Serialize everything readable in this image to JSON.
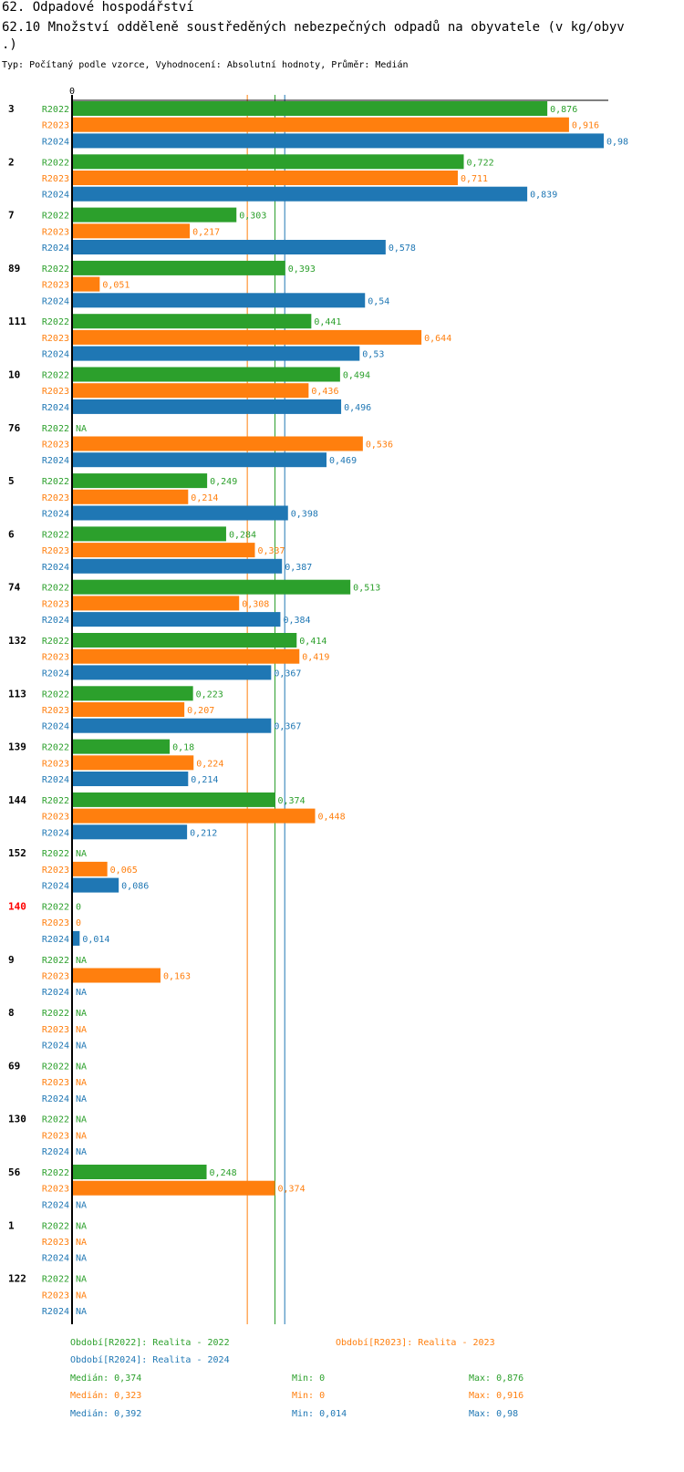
{
  "header": {
    "title": "62. Odpadové hospodářství",
    "subtitle_line1": "62.10 Množství odděleně soustředěných nebezpečných odpadů na obyvatele (v kg/obyv",
    "subtitle_line2": ".)",
    "info": "Typ: Počítaný podle vzorce, Vyhodnocení: Absolutní hodnoty, Průměr: Medián"
  },
  "colors": {
    "R2022": "#2ca02c",
    "R2023": "#ff7f0e",
    "R2024": "#1f77b4",
    "highlight": "#ff0000"
  },
  "chart_data": {
    "type": "bar",
    "orientation": "horizontal",
    "x_axis_start_label": "0",
    "xlim": [
      0,
      0.98
    ],
    "series_names": [
      "R2022",
      "R2023",
      "R2024"
    ],
    "categories": [
      {
        "label": "3",
        "highlight": false,
        "values": [
          0.876,
          0.916,
          0.98
        ],
        "labels": [
          "0,876",
          "0,916",
          "0,98"
        ]
      },
      {
        "label": "2",
        "highlight": false,
        "values": [
          0.722,
          0.711,
          0.839
        ],
        "labels": [
          "0,722",
          "0,711",
          "0,839"
        ]
      },
      {
        "label": "7",
        "highlight": false,
        "values": [
          0.303,
          0.217,
          0.578
        ],
        "labels": [
          "0,303",
          "0,217",
          "0,578"
        ]
      },
      {
        "label": "89",
        "highlight": false,
        "values": [
          0.393,
          0.051,
          0.54
        ],
        "labels": [
          "0,393",
          "0,051",
          "0,54"
        ]
      },
      {
        "label": "111",
        "highlight": false,
        "values": [
          0.441,
          0.644,
          0.53
        ],
        "labels": [
          "0,441",
          "0,644",
          "0,53"
        ]
      },
      {
        "label": "10",
        "highlight": false,
        "values": [
          0.494,
          0.436,
          0.496
        ],
        "labels": [
          "0,494",
          "0,436",
          "0,496"
        ]
      },
      {
        "label": "76",
        "highlight": false,
        "values": [
          null,
          0.536,
          0.469
        ],
        "labels": [
          "NA",
          "0,536",
          "0,469"
        ]
      },
      {
        "label": "5",
        "highlight": false,
        "values": [
          0.249,
          0.214,
          0.398
        ],
        "labels": [
          "0,249",
          "0,214",
          "0,398"
        ]
      },
      {
        "label": "6",
        "highlight": false,
        "values": [
          0.284,
          0.337,
          0.387
        ],
        "labels": [
          "0,284",
          "0,337",
          "0,387"
        ]
      },
      {
        "label": "74",
        "highlight": false,
        "values": [
          0.513,
          0.308,
          0.384
        ],
        "labels": [
          "0,513",
          "0,308",
          "0,384"
        ]
      },
      {
        "label": "132",
        "highlight": false,
        "values": [
          0.414,
          0.419,
          0.367
        ],
        "labels": [
          "0,414",
          "0,419",
          "0,367"
        ]
      },
      {
        "label": "113",
        "highlight": false,
        "values": [
          0.223,
          0.207,
          0.367
        ],
        "labels": [
          "0,223",
          "0,207",
          "0,367"
        ]
      },
      {
        "label": "139",
        "highlight": false,
        "values": [
          0.18,
          0.224,
          0.214
        ],
        "labels": [
          "0,18",
          "0,224",
          "0,214"
        ]
      },
      {
        "label": "144",
        "highlight": false,
        "values": [
          0.374,
          0.448,
          0.212
        ],
        "labels": [
          "0,374",
          "0,448",
          "0,212"
        ]
      },
      {
        "label": "152",
        "highlight": false,
        "values": [
          null,
          0.065,
          0.086
        ],
        "labels": [
          "NA",
          "0,065",
          "0,086"
        ]
      },
      {
        "label": "140",
        "highlight": true,
        "values": [
          0,
          0,
          0.014
        ],
        "labels": [
          "0",
          "0",
          "0,014"
        ]
      },
      {
        "label": "9",
        "highlight": false,
        "values": [
          null,
          0.163,
          null
        ],
        "labels": [
          "NA",
          "0,163",
          "NA"
        ]
      },
      {
        "label": "8",
        "highlight": false,
        "values": [
          null,
          null,
          null
        ],
        "labels": [
          "NA",
          "NA",
          "NA"
        ]
      },
      {
        "label": "69",
        "highlight": false,
        "values": [
          null,
          null,
          null
        ],
        "labels": [
          "NA",
          "NA",
          "NA"
        ]
      },
      {
        "label": "130",
        "highlight": false,
        "values": [
          null,
          null,
          null
        ],
        "labels": [
          "NA",
          "NA",
          "NA"
        ]
      },
      {
        "label": "56",
        "highlight": false,
        "values": [
          0.248,
          0.374,
          null
        ],
        "labels": [
          "0,248",
          "0,374",
          "NA"
        ]
      },
      {
        "label": "1",
        "highlight": false,
        "values": [
          null,
          null,
          null
        ],
        "labels": [
          "NA",
          "NA",
          "NA"
        ]
      },
      {
        "label": "122",
        "highlight": false,
        "values": [
          null,
          null,
          null
        ],
        "labels": [
          "NA",
          "NA",
          "NA"
        ]
      }
    ],
    "median_lines": [
      {
        "series": "R2022",
        "value": 0.374
      },
      {
        "series": "R2023",
        "value": 0.323
      },
      {
        "series": "R2024",
        "value": 0.392
      }
    ]
  },
  "legend": {
    "periods": [
      {
        "series": "R2022",
        "text": "Období[R2022]: Realita - 2022"
      },
      {
        "series": "R2023",
        "text": "Období[R2023]: Realita - 2023"
      },
      {
        "series": "R2024",
        "text": "Období[R2024]: Realita - 2024"
      }
    ],
    "stats": [
      {
        "series": "R2022",
        "median": "Medián: 0,374",
        "min": "Min: 0",
        "max": "Max: 0,876"
      },
      {
        "series": "R2023",
        "median": "Medián: 0,323",
        "min": "Min: 0",
        "max": "Max: 0,916"
      },
      {
        "series": "R2024",
        "median": "Medián: 0,392",
        "min": "Min: 0,014",
        "max": "Max: 0,98"
      }
    ]
  }
}
